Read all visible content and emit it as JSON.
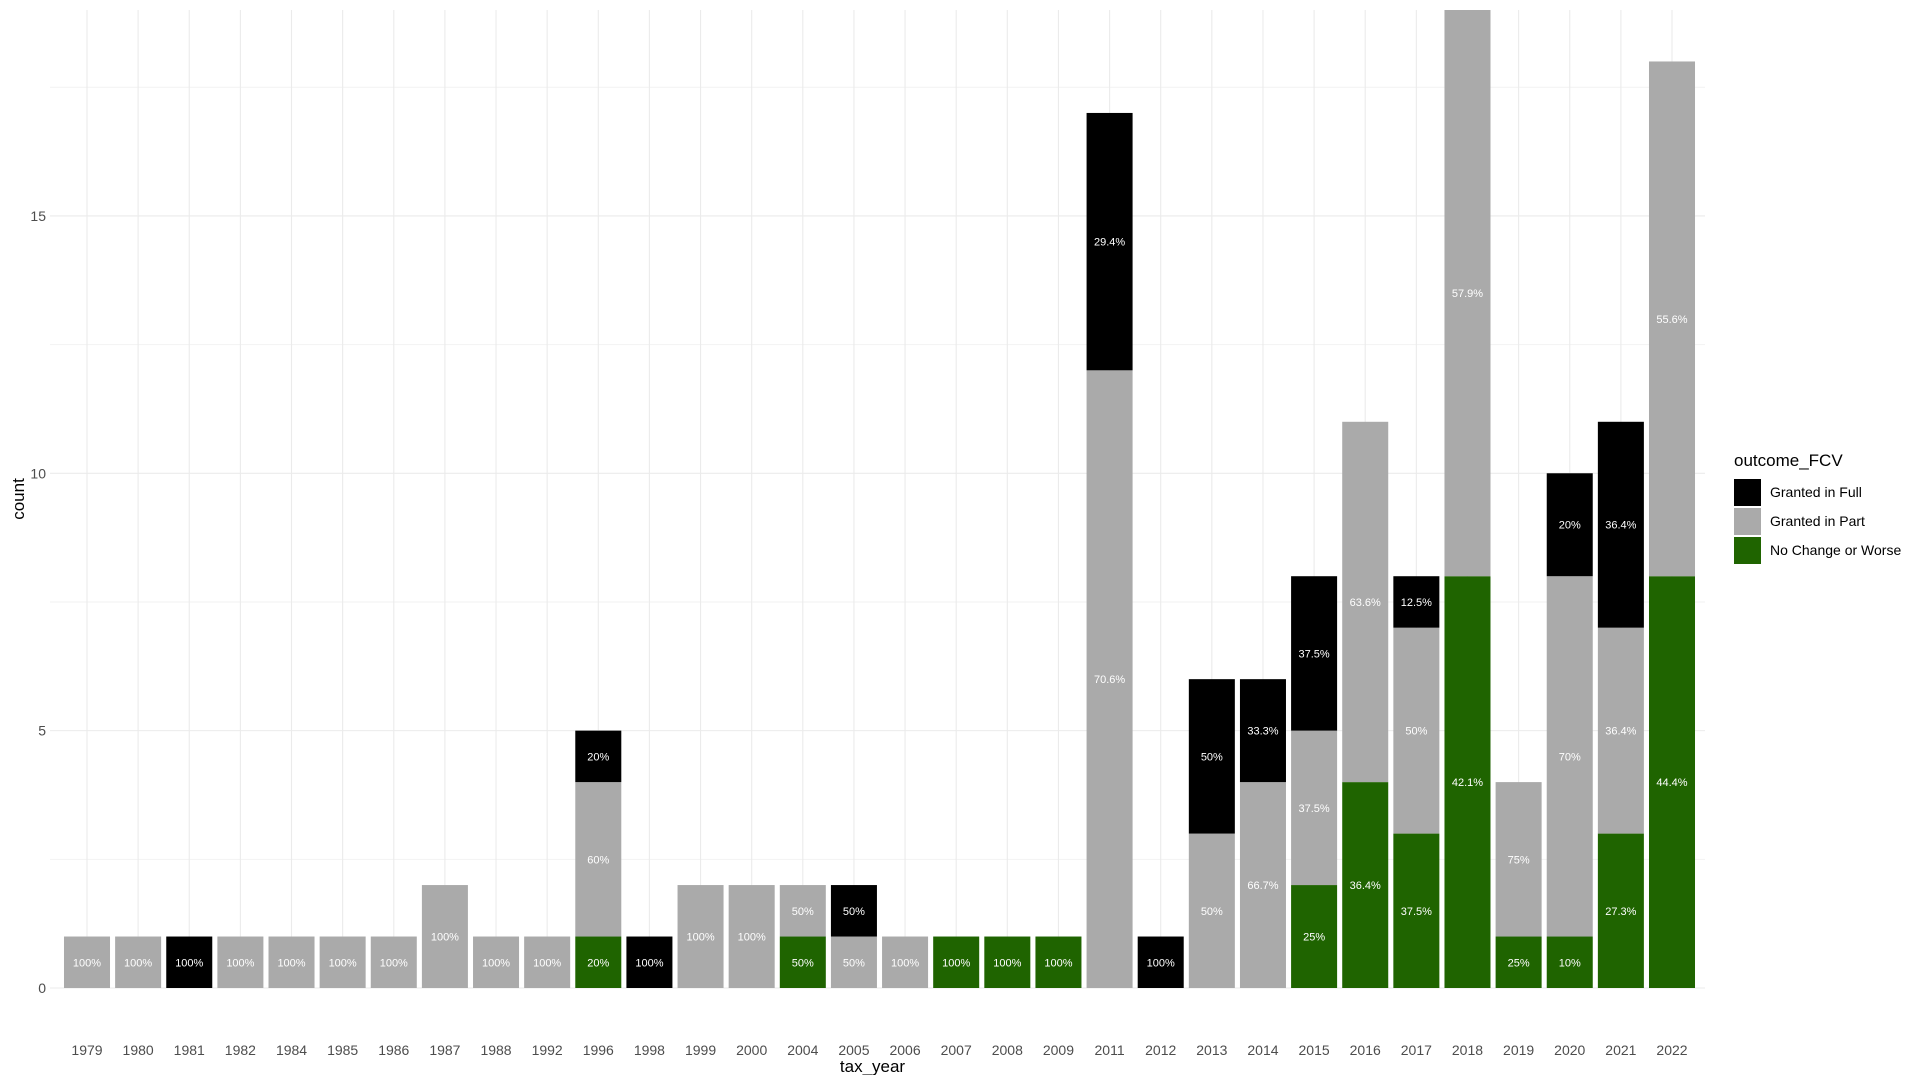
{
  "chart_data": {
    "type": "bar",
    "stacked": true,
    "title": "",
    "xlabel": "tax_year",
    "ylabel": "count",
    "ylim": [
      0,
      19
    ],
    "y_ticks": [
      0,
      5,
      10,
      15
    ],
    "legend_title": "outcome_FCV",
    "legend_position": "right",
    "categories": [
      "1979",
      "1980",
      "1981",
      "1982",
      "1984",
      "1985",
      "1986",
      "1987",
      "1988",
      "1992",
      "1996",
      "1998",
      "1999",
      "2000",
      "2004",
      "2005",
      "2006",
      "2007",
      "2008",
      "2009",
      "2011",
      "2012",
      "2013",
      "2014",
      "2015",
      "2016",
      "2017",
      "2018",
      "2019",
      "2020",
      "2021",
      "2022"
    ],
    "series": [
      {
        "name": "Granted in Full",
        "color": "#000000",
        "values": [
          0,
          0,
          1,
          0,
          0,
          0,
          0,
          0,
          0,
          0,
          1,
          1,
          0,
          0,
          0,
          1,
          0,
          0,
          0,
          0,
          5,
          1,
          3,
          2,
          3,
          0,
          1,
          0,
          0,
          2,
          4,
          0
        ],
        "labels": [
          "",
          "",
          "100%",
          "",
          "",
          "",
          "",
          "",
          "",
          "",
          "20%",
          "100%",
          "",
          "",
          "",
          "50%",
          "",
          "",
          "",
          "",
          "29.4%",
          "100%",
          "50%",
          "33.3%",
          "37.5%",
          "",
          "12.5%",
          "",
          "",
          "20%",
          "36.4%",
          ""
        ]
      },
      {
        "name": "Granted in Part",
        "color": "#aaaaaa",
        "values": [
          1,
          1,
          0,
          1,
          1,
          1,
          1,
          2,
          1,
          1,
          3,
          0,
          2,
          2,
          1,
          1,
          1,
          0,
          0,
          0,
          12,
          0,
          3,
          4,
          3,
          7,
          4,
          11,
          3,
          7,
          4,
          10
        ],
        "labels": [
          "100%",
          "100%",
          "",
          "100%",
          "100%",
          "100%",
          "100%",
          "100%",
          "100%",
          "100%",
          "60%",
          "",
          "100%",
          "100%",
          "50%",
          "50%",
          "100%",
          "",
          "",
          "",
          "70.6%",
          "",
          "50%",
          "66.7%",
          "37.5%",
          "63.6%",
          "50%",
          "57.9%",
          "75%",
          "70%",
          "36.4%",
          "55.6%"
        ]
      },
      {
        "name": "No Change or Worse",
        "color": "#1f6400",
        "values": [
          0,
          0,
          0,
          0,
          0,
          0,
          0,
          0,
          0,
          0,
          1,
          0,
          0,
          0,
          1,
          0,
          0,
          1,
          1,
          1,
          0,
          0,
          0,
          0,
          2,
          4,
          3,
          8,
          1,
          1,
          3,
          8
        ],
        "labels": [
          "",
          "",
          "",
          "",
          "",
          "",
          "",
          "",
          "",
          "",
          "20%",
          "",
          "",
          "",
          "50%",
          "",
          "",
          "100%",
          "100%",
          "100%",
          "",
          "",
          "",
          "",
          "25%",
          "36.4%",
          "37.5%",
          "42.1%",
          "25%",
          "10%",
          "27.3%",
          "44.4%"
        ]
      }
    ]
  }
}
